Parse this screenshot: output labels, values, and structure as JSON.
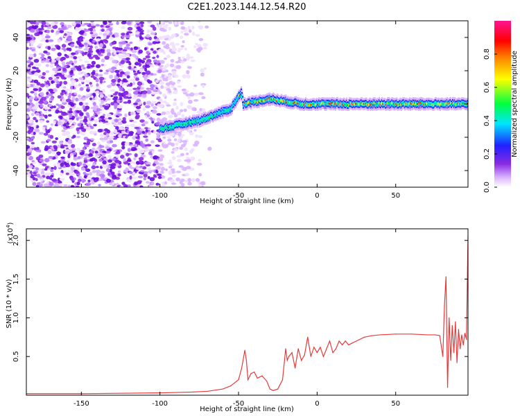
{
  "figure_title": "C2E1.2023.144.12.54.R20",
  "chart_data": [
    {
      "type": "heatmap",
      "xlabel": "Height of straight line (km)",
      "ylabel": "Frequency (Hz)",
      "xlim": [
        -185,
        96
      ],
      "ylim": [
        -50,
        50
      ],
      "xticks": [
        -150,
        -100,
        -50,
        0,
        50
      ],
      "xtick_labels": [
        "-150",
        "-100",
        "-50",
        "0",
        "50"
      ],
      "yticks": [
        -40,
        -20,
        0,
        20,
        40
      ],
      "ytick_labels": [
        "-40",
        "-20",
        "0",
        "20",
        "40"
      ],
      "colorbar": {
        "label": "Normalized spectral amplitude",
        "range": [
          0,
          1
        ],
        "ticks": [
          0.0,
          0.2,
          0.4,
          0.6,
          0.8
        ],
        "tick_labels": [
          "0.0",
          "0.2",
          "0.4",
          "0.6",
          "0.8"
        ],
        "colors": [
          "#ffffff",
          "#d9b3ff",
          "#8a2be2",
          "#2020ff",
          "#00e5ff",
          "#00ff40",
          "#ffff00",
          "#ff8000",
          "#ff0000",
          "#ff1493"
        ]
      },
      "ridge_trace": [
        {
          "x": -100,
          "f": -15
        },
        {
          "x": -75,
          "f": -10
        },
        {
          "x": -55,
          "f": -3
        },
        {
          "x": -48,
          "f": 7
        },
        {
          "x": -47,
          "f": 0
        },
        {
          "x": -30,
          "f": 3
        },
        {
          "x": -10,
          "f": 0
        },
        {
          "x": 0,
          "f": 0
        },
        {
          "x": 20,
          "f": 0
        },
        {
          "x": 80,
          "f": 0
        },
        {
          "x": 96,
          "f": 0
        }
      ],
      "grid": false
    },
    {
      "type": "line",
      "xlabel": "Height of straight line (km)",
      "ylabel": "SNR (10 * v/v)",
      "y_multiplier": "(x10",
      "y_multiplier_exp": "4",
      "y_multiplier_close": ")",
      "xlim": [
        -185,
        96
      ],
      "ylim": [
        0,
        2.15
      ],
      "xticks": [
        -150,
        -100,
        -50,
        0,
        50
      ],
      "xtick_labels": [
        "-150",
        "-100",
        "-50",
        "0",
        "50"
      ],
      "yticks": [
        0.5,
        1.0,
        1.5,
        2.0
      ],
      "ytick_labels": [
        "0.5",
        "1.0",
        "1.5",
        "2.0"
      ],
      "series": [
        {
          "color": "#e8393a",
          "x": [
            -185,
            -150,
            -100,
            -80,
            -70,
            -60,
            -55,
            -50,
            -48,
            -46,
            -45,
            -44,
            -42,
            -40,
            -38,
            -35,
            -32,
            -30,
            -28,
            -25,
            -22,
            -20,
            -19,
            -18,
            -16,
            -14,
            -12,
            -10,
            -8,
            -6,
            -4,
            -2,
            0,
            2,
            4,
            6,
            8,
            10,
            12,
            14,
            16,
            18,
            20,
            25,
            30,
            35,
            40,
            50,
            60,
            70,
            75,
            78,
            80,
            81,
            82,
            83,
            84,
            85,
            86,
            87,
            88,
            89,
            90,
            91,
            92,
            93,
            94,
            95,
            96
          ],
          "y": [
            0.02,
            0.02,
            0.03,
            0.04,
            0.05,
            0.08,
            0.12,
            0.2,
            0.35,
            0.58,
            0.45,
            0.2,
            0.28,
            0.3,
            0.22,
            0.25,
            0.18,
            0.08,
            0.06,
            0.08,
            0.2,
            0.6,
            0.45,
            0.5,
            0.55,
            0.35,
            0.6,
            0.45,
            0.52,
            0.75,
            0.5,
            0.62,
            0.55,
            0.62,
            0.5,
            0.6,
            0.7,
            0.55,
            0.6,
            0.7,
            0.65,
            0.7,
            0.65,
            0.7,
            0.75,
            0.77,
            0.78,
            0.79,
            0.79,
            0.78,
            0.78,
            0.77,
            0.5,
            1.15,
            1.53,
            0.1,
            1.0,
            0.45,
            0.9,
            0.55,
            0.95,
            0.42,
            0.85,
            0.6,
            0.78,
            0.65,
            0.8,
            0.72,
            2.05
          ]
        }
      ],
      "grid": false
    }
  ]
}
